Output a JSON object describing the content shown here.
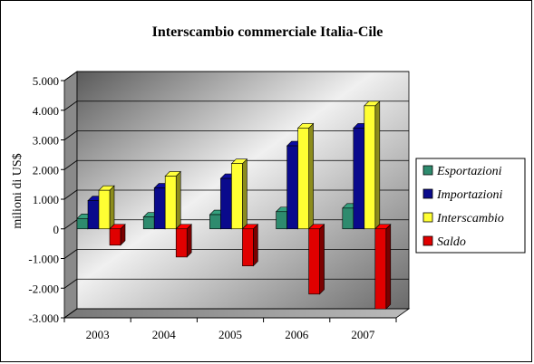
{
  "chart_data": {
    "type": "bar",
    "title": "Interscambio commerciale Italia-Cile",
    "xlabel": "",
    "ylabel": "milioni di US$",
    "categories": [
      "2003",
      "2004",
      "2005",
      "2006",
      "2007"
    ],
    "ylim": [
      -3000,
      5000
    ],
    "yticks": [
      "5.000",
      "4.000",
      "3.000",
      "2.000",
      "1.000",
      "0",
      "-1.000",
      "-2.000",
      "-3.000"
    ],
    "grid": true,
    "legend_position": "right",
    "series": [
      {
        "name": "Esportazioni",
        "color": "#2e8b6e",
        "values": [
          350,
          400,
          480,
          580,
          700
        ]
      },
      {
        "name": "Importazioni",
        "color": "#0a0a8c",
        "values": [
          950,
          1380,
          1700,
          2800,
          3400
        ]
      },
      {
        "name": "Interscambio",
        "color": "#ffff33",
        "values": [
          1300,
          1780,
          2200,
          3400,
          4150
        ]
      },
      {
        "name": "Saldo",
        "color": "#e00000",
        "values": [
          -550,
          -950,
          -1250,
          -2200,
          -2700
        ]
      }
    ]
  }
}
